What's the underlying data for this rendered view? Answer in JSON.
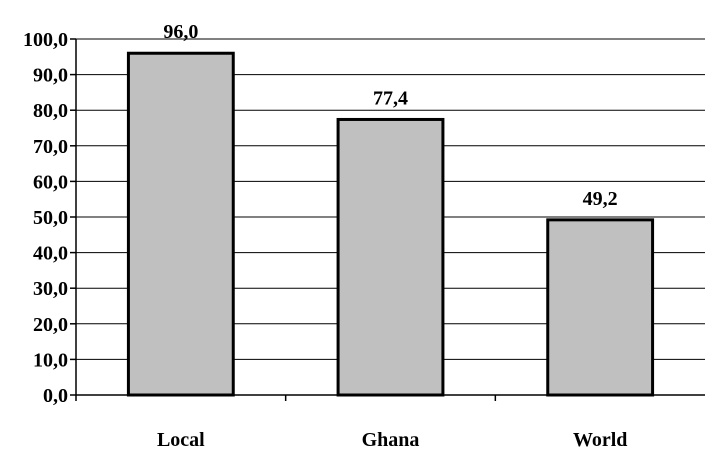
{
  "chart_data": {
    "type": "bar",
    "categories": [
      "Local",
      "Ghana",
      "World"
    ],
    "values": [
      96.0,
      77.4,
      49.2
    ],
    "data_labels": [
      "96,0",
      "77,4",
      "49,2"
    ],
    "title": "",
    "xlabel": "",
    "ylabel": "",
    "ylim": [
      0,
      100
    ],
    "y_ticks": [
      0,
      10,
      20,
      30,
      40,
      50,
      60,
      70,
      80,
      90,
      100
    ],
    "y_tick_labels": [
      "0,0",
      "10,0",
      "20,0",
      "30,0",
      "40,0",
      "50,0",
      "60,0",
      "70,0",
      "80,0",
      "90,0",
      "100,0"
    ],
    "grid": true,
    "legend": "none",
    "colors": {
      "bar_fill": "#c0c0c0",
      "bar_stroke": "#000000",
      "grid": "#000000"
    }
  }
}
